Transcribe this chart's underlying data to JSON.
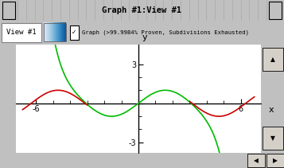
{
  "title_bar": "Graph #1:View #1",
  "toolbar_text": "Graph (>99.9984% Proven, Subdivisions Exhausted)",
  "view_label": "View #1",
  "xlim": [
    -7,
    7
  ],
  "ylim": [
    -3.5,
    4.2
  ],
  "xticks": [
    -6,
    0,
    6
  ],
  "yticks": [
    -3,
    0,
    3
  ],
  "xlabel": "x",
  "ylabel": "y",
  "green_color": "#00bb00",
  "red_color": "#cc0000",
  "bg_color": "#ffffff",
  "frame_color": "#c0c0c0",
  "approx_domain": 3.0,
  "plot_xlim": [
    -6.8,
    6.8
  ]
}
